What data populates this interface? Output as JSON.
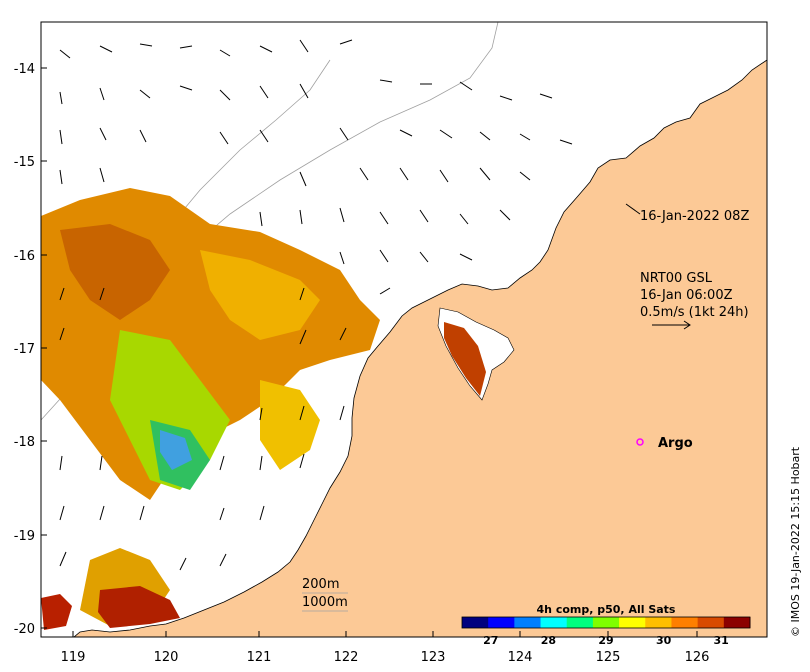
{
  "map": {
    "lon_ticks": [
      "119",
      "120",
      "121",
      "122",
      "123",
      "124",
      "125",
      "126"
    ],
    "lat_ticks": [
      "-14",
      "-15",
      "-16",
      "-17",
      "-18",
      "-19",
      "-20"
    ],
    "land_color": "#fcc996",
    "ocean_color": "#ffffff"
  },
  "annotations": {
    "image_time": "16-Jan-2022 08Z",
    "current_source": "NRT00 GSL",
    "current_time": "16-Jan 06:00Z",
    "current_scale": "0.5m/s (1kt 24h)",
    "argo_label": "Argo",
    "argo_color": "#ff00ff",
    "isobath_200": "200m",
    "isobath_1000": "1000m"
  },
  "colorbar": {
    "title": "4h comp, p50, All Sats",
    "ticks": [
      "27",
      "28",
      "29",
      "30",
      "31"
    ],
    "unit_range": [
      26.5,
      31.5
    ],
    "colors": [
      "#00007f",
      "#0000ff",
      "#007fff",
      "#00ffff",
      "#00ff7f",
      "#7fff00",
      "#ffff00",
      "#ffbf00",
      "#ff7f00",
      "#d84a00",
      "#8b0000"
    ]
  },
  "credit": "© IMOS 19-Jan-2022 15:15 Hobart"
}
